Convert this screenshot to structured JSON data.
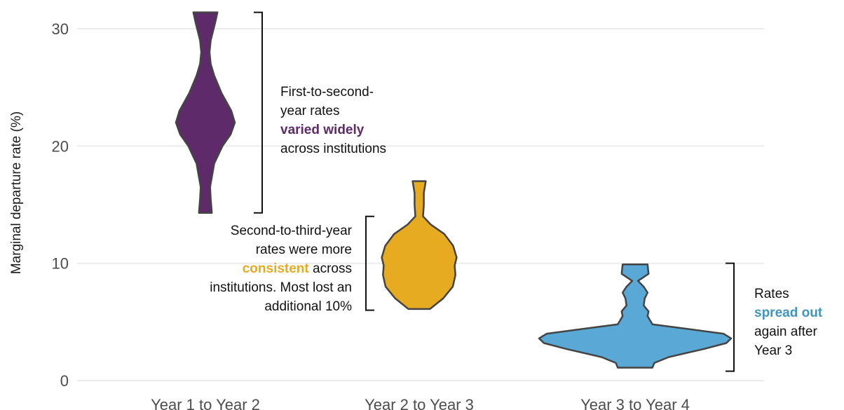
{
  "chart_data": {
    "type": "violin",
    "ylabel": "Marginal departure rate (%)",
    "xlabel": "",
    "ylim": [
      0,
      32
    ],
    "yticks": [
      0,
      10,
      20,
      30
    ],
    "grid": true,
    "categories": [
      "Year 1 to Year 2",
      "Year 2 to Year 3",
      "Year 3 to Year 4"
    ],
    "colors": [
      "#5e2a69",
      "#e7ab21",
      "#5aa8d6"
    ],
    "series": [
      {
        "category": "Year 1 to Year 2",
        "min": 14.3,
        "max": 31.4,
        "density": [
          [
            14.3,
            0.22
          ],
          [
            15.5,
            0.18
          ],
          [
            16.5,
            0.16
          ],
          [
            18.5,
            0.3
          ],
          [
            20.0,
            0.58
          ],
          [
            21.0,
            0.86
          ],
          [
            22.0,
            1.0
          ],
          [
            23.0,
            0.88
          ],
          [
            24.5,
            0.55
          ],
          [
            26.0,
            0.3
          ],
          [
            27.0,
            0.18
          ],
          [
            28.0,
            0.14
          ],
          [
            29.0,
            0.18
          ],
          [
            30.5,
            0.33
          ],
          [
            31.4,
            0.41
          ]
        ]
      },
      {
        "category": "Year 2 to Year 3",
        "min": 6.1,
        "max": 17.0,
        "density": [
          [
            6.1,
            0.28
          ],
          [
            7.0,
            0.62
          ],
          [
            8.0,
            0.87
          ],
          [
            9.0,
            0.94
          ],
          [
            9.8,
            0.92
          ],
          [
            10.5,
            0.97
          ],
          [
            11.5,
            0.88
          ],
          [
            12.5,
            0.65
          ],
          [
            13.3,
            0.3
          ],
          [
            14.0,
            0.1
          ],
          [
            15.0,
            0.12
          ],
          [
            16.0,
            0.12
          ],
          [
            17.0,
            0.17
          ]
        ]
      },
      {
        "category": "Year 3 to Year 4",
        "min": 1.1,
        "max": 9.9,
        "density": [
          [
            1.1,
            0.18
          ],
          [
            1.5,
            0.2
          ],
          [
            2.0,
            0.35
          ],
          [
            2.7,
            0.72
          ],
          [
            3.2,
            0.95
          ],
          [
            3.6,
            1.0
          ],
          [
            4.0,
            0.92
          ],
          [
            4.4,
            0.55
          ],
          [
            4.8,
            0.18
          ],
          [
            5.5,
            0.13
          ],
          [
            5.9,
            0.14
          ],
          [
            6.4,
            0.09
          ],
          [
            7.0,
            0.1
          ],
          [
            7.5,
            0.13
          ],
          [
            8.0,
            0.09
          ],
          [
            8.5,
            0.03
          ],
          [
            9.1,
            0.14
          ],
          [
            9.9,
            0.13
          ]
        ]
      }
    ],
    "annotations": [
      {
        "category": "Year 1 to Year 2",
        "bracket": [
          14.3,
          31.4
        ],
        "side": "right",
        "lines": [
          [
            {
              "text": "First-to-second-"
            }
          ],
          [
            {
              "text": "year rates"
            }
          ],
          [
            {
              "text": "varied widely",
              "highlight": "#5e2a69"
            }
          ],
          [
            {
              "text": "across institutions"
            }
          ]
        ]
      },
      {
        "category": "Year 2 to Year 3",
        "bracket": [
          6.0,
          14.0
        ],
        "side": "left",
        "lines": [
          [
            {
              "text": "Second-to-third-year"
            }
          ],
          [
            {
              "text": "rates were more"
            }
          ],
          [
            {
              "text": "consistent",
              "highlight": "#e7ab21"
            },
            {
              "text": " across"
            }
          ],
          [
            {
              "text": "institutions. Most lost an"
            }
          ],
          [
            {
              "text": "additional 10%"
            }
          ]
        ]
      },
      {
        "category": "Year 3 to Year 4",
        "bracket": [
          0.8,
          10.0
        ],
        "side": "right",
        "lines": [
          [
            {
              "text": "Rates"
            }
          ],
          [
            {
              "text": "spread out",
              "highlight": "#3f95bf"
            }
          ],
          [
            {
              "text": "again after"
            }
          ],
          [
            {
              "text": "Year 3"
            }
          ]
        ]
      }
    ]
  }
}
